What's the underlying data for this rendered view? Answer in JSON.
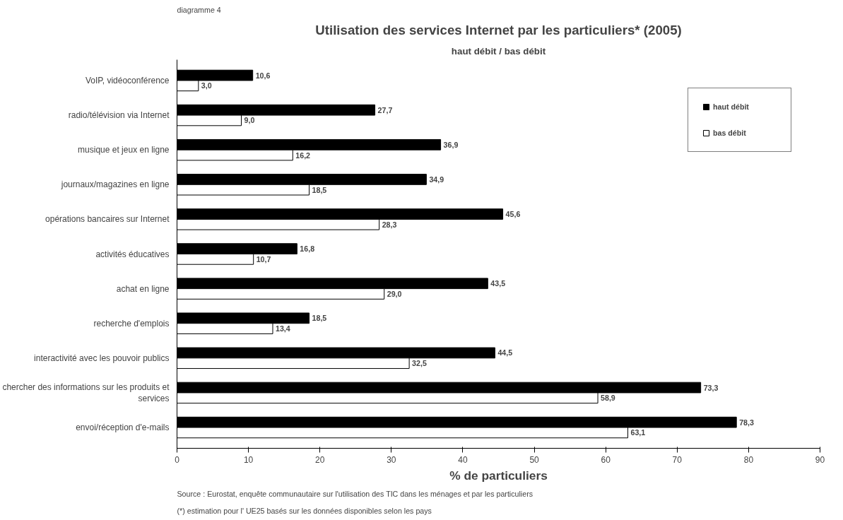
{
  "chart_data": {
    "type": "bar",
    "orientation": "horizontal",
    "title": "Utilisation des services Internet par les particuliers* (2005)",
    "subtitle": "haut débit / bas débit",
    "xlabel": "% de particuliers",
    "categories": [
      "VoIP, vidéoconférence",
      "radio/télévision via Internet",
      "musique et jeux en ligne",
      "journaux/magazines en ligne",
      "opérations bancaires sur Internet",
      "activités éducatives",
      "achat en ligne",
      "recherche d'emplois",
      "interactivité avec les pouvoir publics",
      "chercher des informations sur les produits et services",
      "envoi/réception d'e-mails"
    ],
    "series": [
      {
        "name": "haut débit",
        "color": "#000000",
        "values": [
          10.6,
          27.7,
          36.9,
          34.9,
          45.6,
          16.8,
          43.5,
          18.5,
          44.5,
          73.3,
          78.3
        ],
        "value_labels": [
          "10,6",
          "27,7",
          "36,9",
          "34,9",
          "45,6",
          "16,8",
          "43,5",
          "18,5",
          "44,5",
          "73,3",
          "78,3"
        ]
      },
      {
        "name": "bas débit",
        "color": "#ffffff",
        "values": [
          3.0,
          9.0,
          16.2,
          18.5,
          28.3,
          10.7,
          29.0,
          13.4,
          32.5,
          58.9,
          63.1
        ],
        "value_labels": [
          "3,0",
          "9,0",
          "16,2",
          "18,5",
          "28,3",
          "10,7",
          "29,0",
          "13,4",
          "32,5",
          "58,9",
          "63,1"
        ]
      }
    ],
    "xlim": [
      0,
      90
    ],
    "xticks": [
      0,
      10,
      20,
      30,
      40,
      50,
      60,
      70,
      80,
      90
    ],
    "grid": false,
    "legend": "top right",
    "annotations": [
      "diagramme 4",
      "Source : Eurostat, enquête communautaire sur l'utilisation des TIC dans les ménages et par les particuliers",
      "(*) estimation pour l' UE25 basés sur les données disponibles selon les pays"
    ]
  }
}
